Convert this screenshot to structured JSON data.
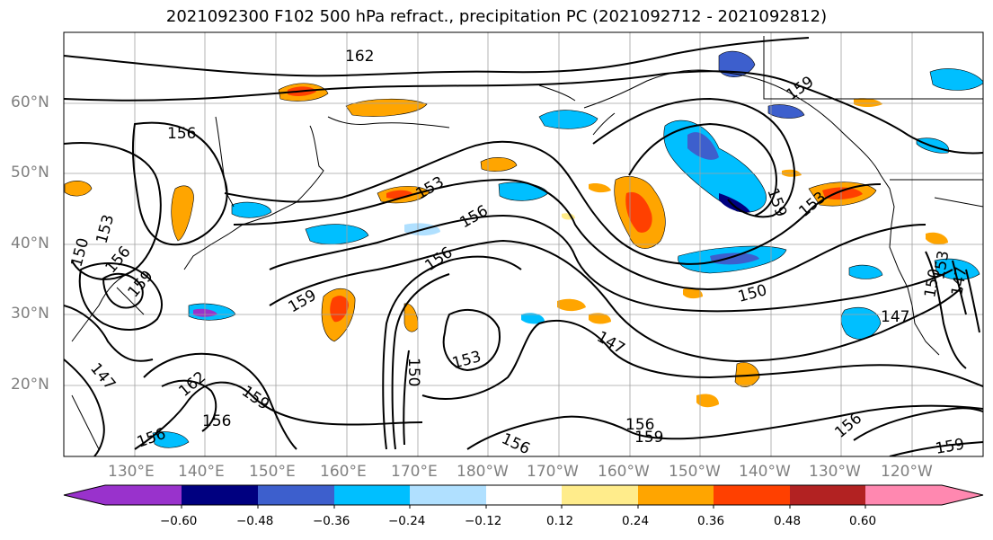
{
  "title": "2021092300 F102 500 hPa refract., precipitation PC (2021092712 - 2021092812)",
  "lat_labels": [
    "60°N",
    "50°N",
    "40°N",
    "30°N",
    "20°N"
  ],
  "lon_labels": [
    "130°E",
    "140°E",
    "150°E",
    "160°E",
    "170°E",
    "180°W",
    "170°W",
    "160°W",
    "150°W",
    "140°W",
    "130°W",
    "120°W"
  ],
  "contour_labels": [
    "162",
    "156",
    "159",
    "153",
    "156",
    "156",
    "159",
    "153",
    "150",
    "147",
    "153",
    "147",
    "150",
    "159",
    "162",
    "156",
    "159",
    "156",
    "159",
    "156",
    "156",
    "150",
    "153",
    "156",
    "159",
    "147",
    "153",
    "150",
    "147",
    "159",
    "156"
  ],
  "colorbar": {
    "ticks": [
      "−0.60",
      "−0.48",
      "−0.36",
      "−0.24",
      "−0.12",
      "0.12",
      "0.24",
      "0.36",
      "0.48",
      "0.60"
    ],
    "colors": [
      "#9932cc",
      "#000080",
      "#3d5fcd",
      "#00bfff",
      "#b0e0ff",
      "#ffffff",
      "#ffec8b",
      "#ffa500",
      "#ff4000",
      "#b22222",
      "#ff88b0"
    ]
  }
}
